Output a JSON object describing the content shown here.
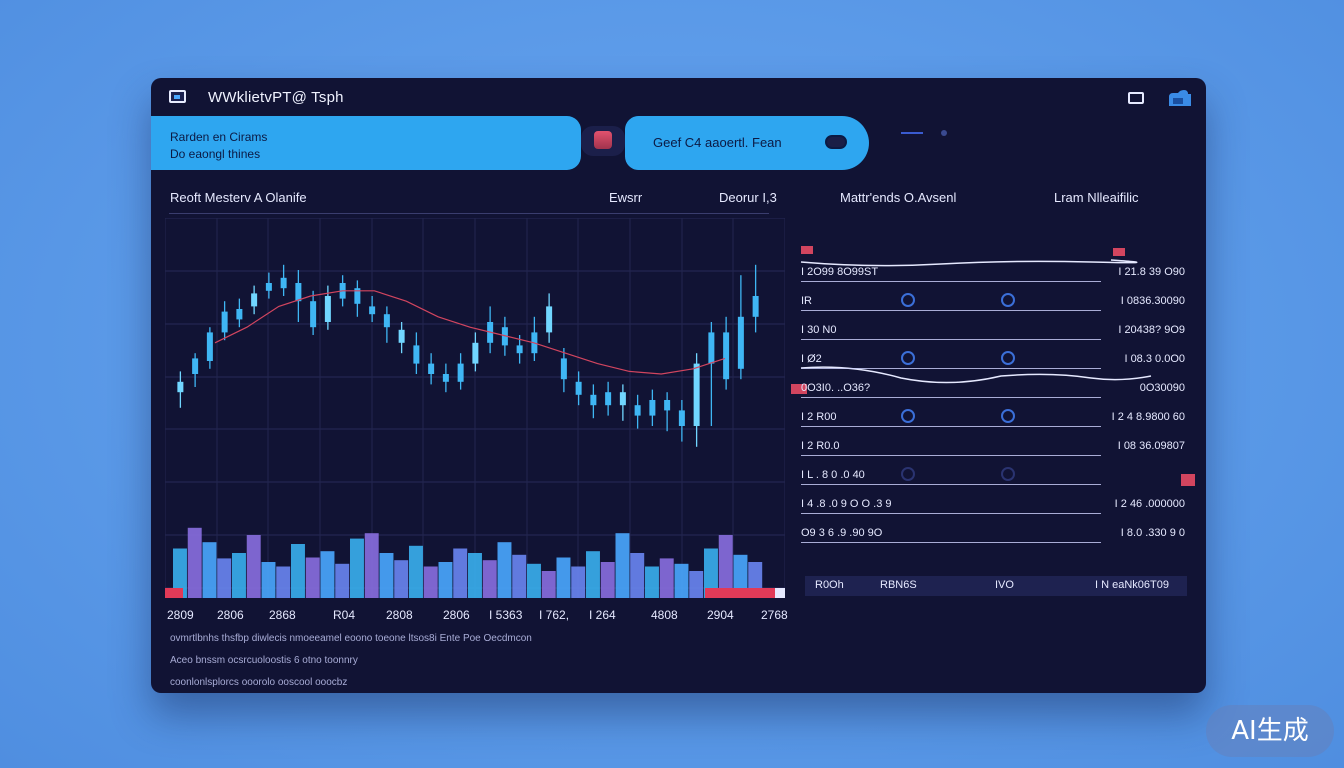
{
  "window": {
    "title": "WWklietvPT@ Tsph"
  },
  "banner": {
    "line1": "Rarden en Cirams",
    "line2": "Do eaongl thines"
  },
  "search": {
    "text": "Geef C4  aaoertl. Fean"
  },
  "panel_titles": {
    "left": "Reoft Mesterv A  Olanife",
    "center_a": "Ewsrr",
    "center_b": "Deorur  I,3",
    "right_a": "Mattr'ends O.Avsenl",
    "right_b": "Lram  Nlleaifilic"
  },
  "chart_data": {
    "type": "candlestick",
    "x_tick_labels": [
      "2809",
      "2806",
      "2868",
      "R04",
      "2808",
      "2806",
      "I 5363",
      "I 762,",
      "I 264",
      "4808",
      "2904",
      "2768"
    ],
    "candles": [
      {
        "o": 0.37,
        "c": 0.33,
        "h": 0.41,
        "l": 0.27
      },
      {
        "o": 0.4,
        "c": 0.46,
        "h": 0.48,
        "l": 0.35
      },
      {
        "o": 0.45,
        "c": 0.56,
        "h": 0.58,
        "l": 0.42
      },
      {
        "o": 0.56,
        "c": 0.64,
        "h": 0.68,
        "l": 0.53
      },
      {
        "o": 0.61,
        "c": 0.65,
        "h": 0.69,
        "l": 0.58
      },
      {
        "o": 0.66,
        "c": 0.71,
        "h": 0.74,
        "l": 0.63
      },
      {
        "o": 0.72,
        "c": 0.75,
        "h": 0.79,
        "l": 0.69
      },
      {
        "o": 0.73,
        "c": 0.77,
        "h": 0.82,
        "l": 0.7
      },
      {
        "o": 0.75,
        "c": 0.68,
        "h": 0.8,
        "l": 0.6
      },
      {
        "o": 0.68,
        "c": 0.58,
        "h": 0.72,
        "l": 0.55
      },
      {
        "o": 0.6,
        "c": 0.7,
        "h": 0.74,
        "l": 0.57
      },
      {
        "o": 0.69,
        "c": 0.75,
        "h": 0.78,
        "l": 0.66
      },
      {
        "o": 0.73,
        "c": 0.67,
        "h": 0.76,
        "l": 0.62
      },
      {
        "o": 0.66,
        "c": 0.63,
        "h": 0.7,
        "l": 0.6
      },
      {
        "o": 0.63,
        "c": 0.58,
        "h": 0.66,
        "l": 0.52
      },
      {
        "o": 0.57,
        "c": 0.52,
        "h": 0.6,
        "l": 0.48
      },
      {
        "o": 0.51,
        "c": 0.44,
        "h": 0.56,
        "l": 0.4
      },
      {
        "o": 0.44,
        "c": 0.4,
        "h": 0.48,
        "l": 0.36
      },
      {
        "o": 0.4,
        "c": 0.37,
        "h": 0.44,
        "l": 0.33
      },
      {
        "o": 0.37,
        "c": 0.44,
        "h": 0.48,
        "l": 0.34
      },
      {
        "o": 0.44,
        "c": 0.52,
        "h": 0.56,
        "l": 0.41
      },
      {
        "o": 0.52,
        "c": 0.6,
        "h": 0.66,
        "l": 0.48
      },
      {
        "o": 0.58,
        "c": 0.51,
        "h": 0.62,
        "l": 0.47
      },
      {
        "o": 0.51,
        "c": 0.48,
        "h": 0.55,
        "l": 0.44
      },
      {
        "o": 0.48,
        "c": 0.56,
        "h": 0.62,
        "l": 0.45
      },
      {
        "o": 0.56,
        "c": 0.66,
        "h": 0.71,
        "l": 0.52
      },
      {
        "o": 0.46,
        "c": 0.38,
        "h": 0.5,
        "l": 0.33
      },
      {
        "o": 0.37,
        "c": 0.32,
        "h": 0.41,
        "l": 0.28
      },
      {
        "o": 0.32,
        "c": 0.28,
        "h": 0.36,
        "l": 0.23
      },
      {
        "o": 0.28,
        "c": 0.33,
        "h": 0.37,
        "l": 0.24
      },
      {
        "o": 0.33,
        "c": 0.28,
        "h": 0.36,
        "l": 0.22
      },
      {
        "o": 0.28,
        "c": 0.24,
        "h": 0.32,
        "l": 0.19
      },
      {
        "o": 0.24,
        "c": 0.3,
        "h": 0.34,
        "l": 0.2
      },
      {
        "o": 0.3,
        "c": 0.26,
        "h": 0.33,
        "l": 0.18
      },
      {
        "o": 0.26,
        "c": 0.2,
        "h": 0.3,
        "l": 0.14
      },
      {
        "o": 0.2,
        "c": 0.44,
        "h": 0.48,
        "l": 0.12
      },
      {
        "o": 0.44,
        "c": 0.56,
        "h": 0.6,
        "l": 0.2
      },
      {
        "o": 0.56,
        "c": 0.38,
        "h": 0.62,
        "l": 0.34
      },
      {
        "o": 0.42,
        "c": 0.62,
        "h": 0.78,
        "l": 0.38
      },
      {
        "o": 0.62,
        "c": 0.7,
        "h": 0.82,
        "l": 0.56
      }
    ],
    "moving_average": [
      0.52,
      0.58,
      0.66,
      0.7,
      0.72,
      0.72,
      0.68,
      0.62,
      0.58,
      0.55,
      0.52,
      0.48,
      0.44,
      0.41,
      0.4,
      0.42,
      0.46
    ],
    "volume": [
      0.55,
      0.78,
      0.62,
      0.44,
      0.5,
      0.7,
      0.4,
      0.35,
      0.6,
      0.45,
      0.52,
      0.38,
      0.66,
      0.72,
      0.5,
      0.42,
      0.58,
      0.35,
      0.4,
      0.55,
      0.5,
      0.42,
      0.62,
      0.48,
      0.38,
      0.3,
      0.45,
      0.35,
      0.52,
      0.4,
      0.72,
      0.5,
      0.35,
      0.44,
      0.38,
      0.3,
      0.55,
      0.7,
      0.48,
      0.4
    ],
    "volume_colors": [
      "#3ab0ee",
      "#8a6fe0",
      "#4aa8ff",
      "#6a86f2"
    ],
    "grid": true,
    "colors": {
      "candle": "#3fb6f4",
      "candle_bright": "#71d6ff",
      "moving_average": "#d2455f",
      "accent_red": "#e13a58"
    }
  },
  "side_panel": {
    "rows": [
      {
        "label": "I 2O99 8O99ST",
        "value": "I 21.8 39 O90"
      },
      {
        "label": "IR",
        "value": "I 0836.30090"
      },
      {
        "label": "I 30 N0",
        "value": "I 20438? 9O9"
      },
      {
        "label": "I Ø2",
        "value": "I 08.3 0.0O0"
      },
      {
        "label": "0O3I0. ..O36?",
        "value": "0O30090"
      },
      {
        "label": "I 2 R00",
        "value": "I 2 4 8.9800 60"
      },
      {
        "label": "I 2 R0.0",
        "value": "I 08 36.09807"
      },
      {
        "label": "I  L . 8 0 .0 40",
        "value": ""
      },
      {
        "label": "I  4 .8 .0 9 O O .3 9",
        "value": "I 2 46 .000000"
      },
      {
        "label": "O9 3 6 .9 .90 9O",
        "value": "I 8.0 .330 9 0"
      }
    ]
  },
  "footer_bar": {
    "items": [
      "R0Oh",
      "RBN6S",
      "IVO",
      "I N eaNk06T09"
    ]
  },
  "footnotes": [
    "ovmrtlbnhs   thsfbp  diwlecis  nmoeeamel   eoono   toeone  ltsos8i   Ente   Poe  Oecdmcon",
    "Aceo  bnssm  ocsrcuoloostis   6 otno  toonnry",
    "coonlonlsplorcs   ooorolo   ooscool  ooocbz"
  ],
  "watermark": {
    "text": "AI生成"
  }
}
